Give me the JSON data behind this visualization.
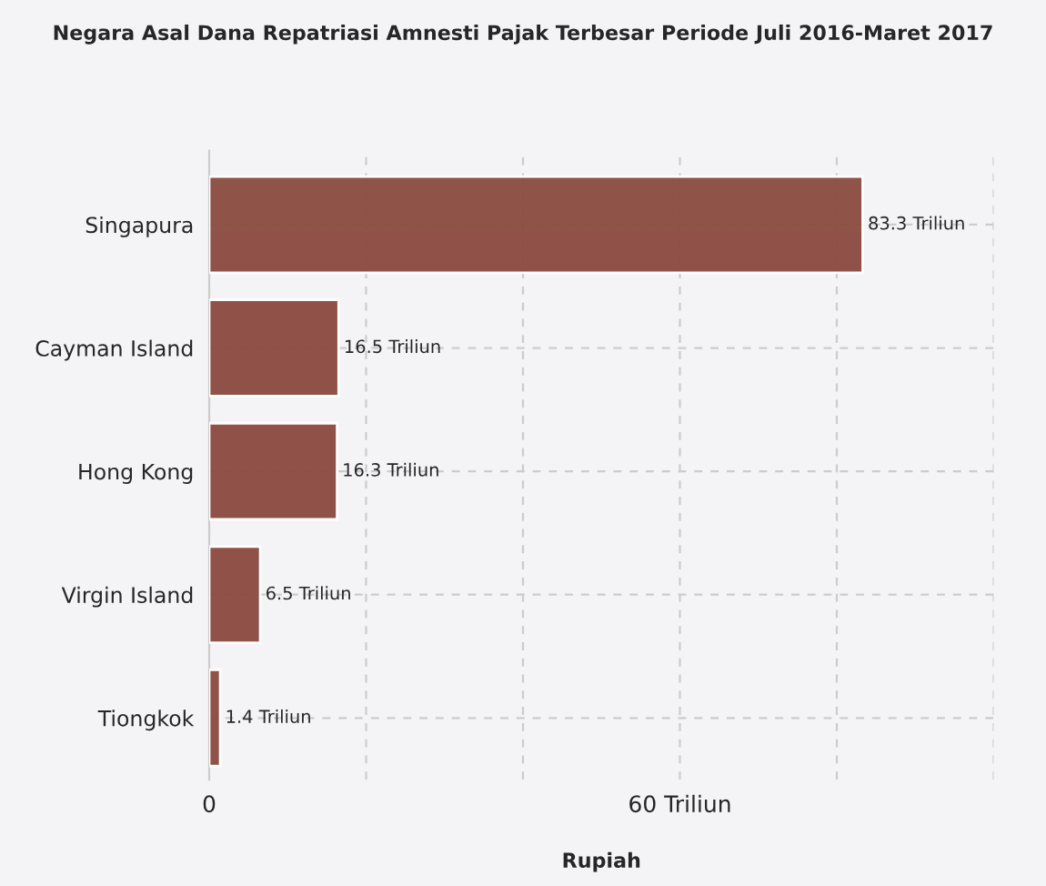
{
  "chart_data": {
    "type": "bar",
    "orientation": "horizontal",
    "title": "Negara Asal Dana Repatriasi Amnesti Pajak Terbesar Periode Juli 2016-Maret 2017",
    "xlabel": "Rupiah",
    "categories": [
      "Singapura",
      "Cayman Island",
      "Hong Kong",
      "Virgin Island",
      "Tiongkok"
    ],
    "values": [
      83.3,
      16.5,
      16.3,
      6.5,
      1.4
    ],
    "value_labels": [
      "83.3 Triliun",
      "16.5 Triliun",
      "16.3 Triliun",
      "6.5 Triliun",
      "1.4 Triliun"
    ],
    "color": "#8b4a3f",
    "xlim": [
      0,
      100
    ],
    "xticks": [
      0,
      {
        "value": 20,
        "label": null
      },
      {
        "value": 40,
        "label": null
      },
      {
        "value": 60,
        "label": "60 Triliun"
      },
      {
        "value": 80,
        "label": null
      },
      {
        "value": 100,
        "label": null
      }
    ],
    "grid": true
  }
}
